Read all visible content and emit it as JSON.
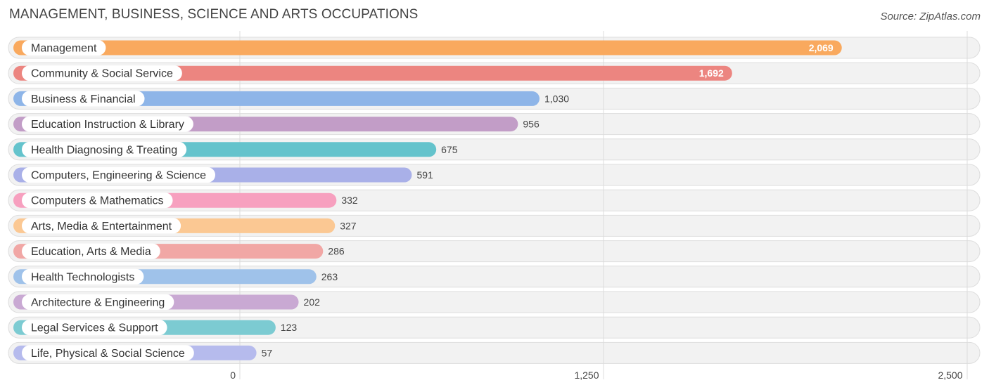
{
  "chart_data": {
    "type": "bar",
    "orientation": "horizontal",
    "title": "MANAGEMENT, BUSINESS, SCIENCE AND ARTS OCCUPATIONS",
    "source": "Source: ZipAtlas.com",
    "xlim": [
      0,
      2500
    ],
    "ticks": [
      {
        "value": 0,
        "label": "0"
      },
      {
        "value": 1250,
        "label": "1,250"
      },
      {
        "value": 2500,
        "label": "2,500"
      }
    ],
    "grid": true,
    "categories": [
      "Management",
      "Community & Social Service",
      "Business & Financial",
      "Education Instruction & Library",
      "Health Diagnosing & Treating",
      "Computers, Engineering & Science",
      "Computers & Mathematics",
      "Arts, Media & Entertainment",
      "Education, Arts & Media",
      "Health Technologists",
      "Architecture & Engineering",
      "Legal Services & Support",
      "Life, Physical & Social Science"
    ],
    "values": [
      2069,
      1692,
      1030,
      956,
      675,
      591,
      332,
      327,
      286,
      263,
      202,
      123,
      57
    ],
    "value_labels": [
      "2,069",
      "1,692",
      "1,030",
      "956",
      "675",
      "591",
      "332",
      "327",
      "286",
      "263",
      "202",
      "123",
      "57"
    ],
    "colors": [
      "#f9a95e",
      "#ec8580",
      "#8eb5e8",
      "#c29dc7",
      "#64c3cc",
      "#a9b0e8",
      "#f7a0bf",
      "#fbc893",
      "#f1a7a5",
      "#9fc2ea",
      "#c9a9d3",
      "#7ccbd2",
      "#b6bbed"
    ]
  }
}
